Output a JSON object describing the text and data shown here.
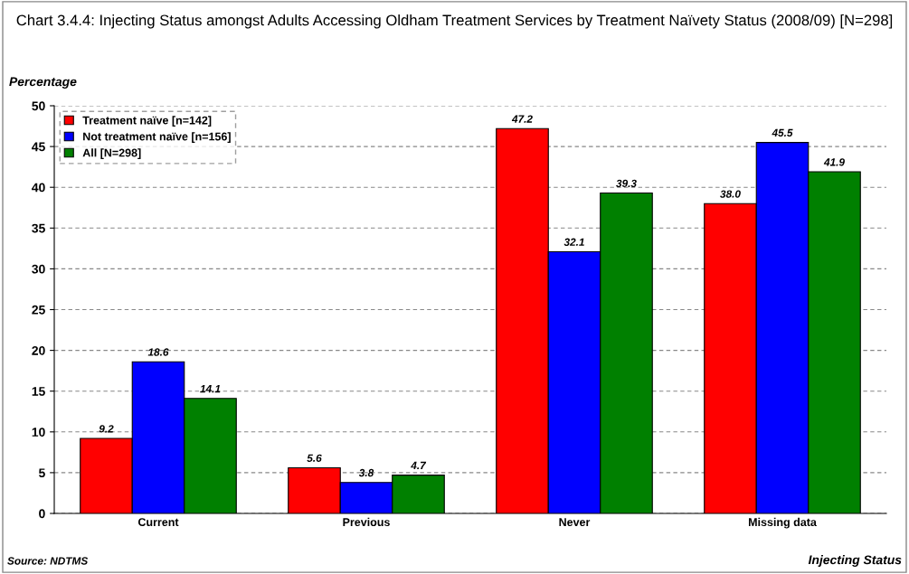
{
  "chart_data": {
    "type": "bar",
    "title": "Chart 3.4.4: Injecting Status amongst Adults Accessing Oldham Treatment Services by Treatment Naïvety Status (2008/09) [N=298]",
    "ylabel": "Percentage",
    "xlabel": "Injecting Status",
    "annotations": [
      "Source: NDTMS"
    ],
    "categories": [
      "Current",
      "Previous",
      "Never",
      "Missing data"
    ],
    "series": [
      {
        "name": "Treatment naïve [n=142]",
        "color": "#ff0000",
        "values": [
          9.2,
          5.6,
          47.2,
          38.0
        ],
        "value_labels": [
          "9.2",
          "5.6",
          "47.2",
          "38.0"
        ]
      },
      {
        "name": "Not treatment naïve [n=156]",
        "color": "#0000ff",
        "values": [
          18.6,
          3.8,
          32.1,
          45.5
        ],
        "value_labels": [
          "18.6",
          "3.8",
          "32.1",
          "45.5"
        ]
      },
      {
        "name": "All [N=298]",
        "color": "#008000",
        "values": [
          14.1,
          4.7,
          39.3,
          41.9
        ],
        "value_labels": [
          "14.1",
          "4.7",
          "39.3",
          "41.9"
        ]
      }
    ],
    "ylim": [
      0,
      50
    ],
    "yticks": [
      0,
      5,
      10,
      15,
      20,
      25,
      30,
      35,
      40,
      45,
      50
    ],
    "grid": "y",
    "legend": "top left"
  }
}
